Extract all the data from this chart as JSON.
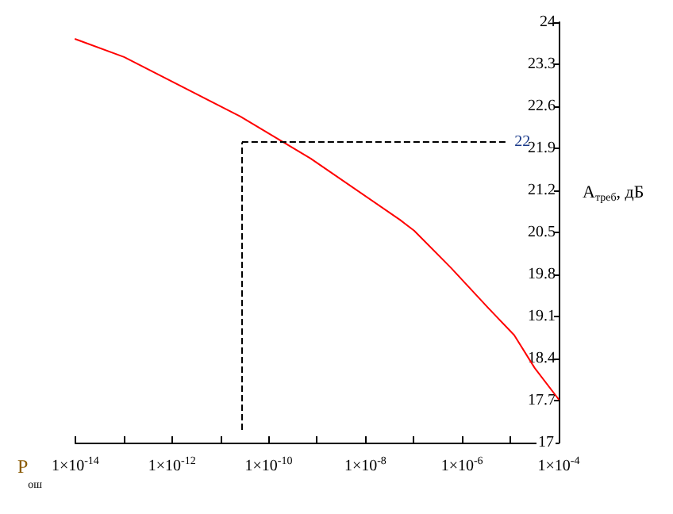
{
  "chart_data": {
    "type": "line",
    "xlabel": "P$_{ош}$",
    "ylabel": "A$_{треб}$, дБ",
    "x": [
      1e-14,
      1.02e-13,
      2.6e-11,
      7.4e-10,
      5.2e-08,
      1.02e-07,
      5.9e-07,
      3.5e-06,
      1.2e-05,
      3.2e-05,
      0.0001
    ],
    "series": [
      {
        "color": "#ff0000",
        "values": [
          23.72,
          23.42,
          22.43,
          21.73,
          20.71,
          20.53,
          19.91,
          19.24,
          18.79,
          18.24,
          17.72
        ]
      }
    ],
    "log": "x",
    "xlim": [
      1e-14,
      0.0001
    ],
    "xticks": [
      {
        "value": 1e-14,
        "label": "1×10$^{-14}$"
      },
      {
        "value": 1e-13,
        "label": null
      },
      {
        "value": 1e-12,
        "label": "1×10$^{-12}$"
      },
      {
        "value": 1e-11,
        "label": null
      },
      {
        "value": 1e-10,
        "label": "1×10$^{-10}$"
      },
      {
        "value": 1e-09,
        "label": null
      },
      {
        "value": 1e-08,
        "label": "1×10$^{-8}$"
      },
      {
        "value": 1e-07,
        "label": null
      },
      {
        "value": 1e-06,
        "label": "1×10$^{-6}$"
      },
      {
        "value": 1e-05,
        "label": null
      },
      {
        "value": 0.0001,
        "label": "1×10$^{-4}$"
      }
    ],
    "ylim": [
      17,
      24
    ],
    "yticks": [
      17,
      17.7,
      18.4,
      19.1,
      19.8,
      20.5,
      21.2,
      21.9,
      22.6,
      23.3,
      24
    ],
    "ref_lines": [
      {
        "axis": "y",
        "value": 22,
        "label": "22",
        "color": "#000000",
        "line_style": "dashed"
      },
      {
        "axis": "x",
        "value": 2.8e-11,
        "color": "#000000",
        "line_style": "dashed"
      }
    ],
    "grid": false,
    "marker": "none",
    "line_style": "solid"
  }
}
